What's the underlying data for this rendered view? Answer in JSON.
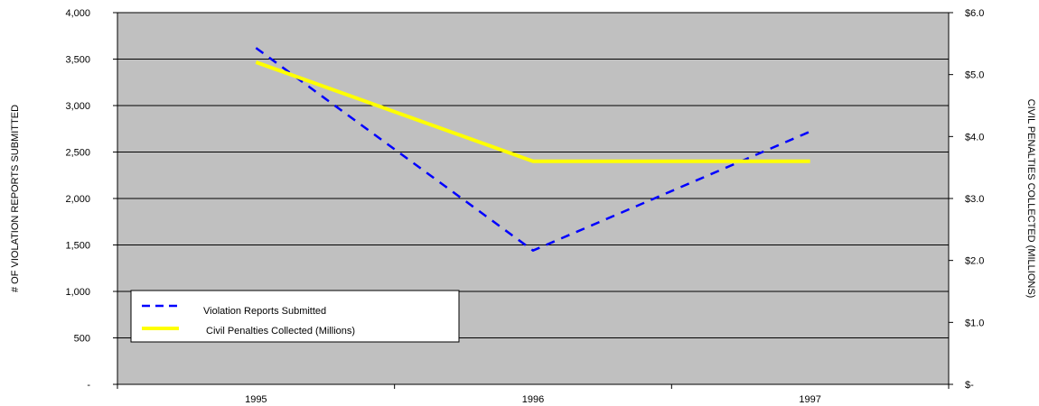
{
  "chart_data": {
    "type": "line",
    "categories": [
      "1995",
      "1996",
      "1997"
    ],
    "series": [
      {
        "name": "Violation Reports Submitted",
        "axis": "left",
        "values": [
          3620,
          1440,
          2720
        ],
        "color": "#0000ff",
        "style": "dashed"
      },
      {
        "name": "Civil Penalties Collected (Millions)",
        "axis": "right",
        "values": [
          5.2,
          3.6,
          3.6
        ],
        "color": "#ffff00",
        "style": "solid"
      }
    ],
    "ylabel": "# OF VIOLATION REPORTS SUBMITTED",
    "y2label": "CIVIL PENALTIES COLLECTED (MILLIONS)",
    "ylim": [
      0,
      4000
    ],
    "y2lim": [
      0,
      6
    ],
    "yticks": [
      {
        "value": 0,
        "label": "-"
      },
      {
        "value": 500,
        "label": "500"
      },
      {
        "value": 1000,
        "label": "1,000"
      },
      {
        "value": 1500,
        "label": "1,500"
      },
      {
        "value": 2000,
        "label": "2,000"
      },
      {
        "value": 2500,
        "label": "2,500"
      },
      {
        "value": 3000,
        "label": "3,000"
      },
      {
        "value": 3500,
        "label": "3,500"
      },
      {
        "value": 4000,
        "label": "4,000"
      }
    ],
    "y2ticks": [
      {
        "value": 0,
        "label": "$-"
      },
      {
        "value": 1,
        "label": "$1.0"
      },
      {
        "value": 2,
        "label": "$2.0"
      },
      {
        "value": 3,
        "label": "$3.0"
      },
      {
        "value": 4,
        "label": "$4.0"
      },
      {
        "value": 5,
        "label": "$5.0"
      },
      {
        "value": 6,
        "label": "$6.0"
      }
    ],
    "grid": true,
    "plot_background": "#c0c0c0",
    "legend_position": "bottom-left"
  }
}
